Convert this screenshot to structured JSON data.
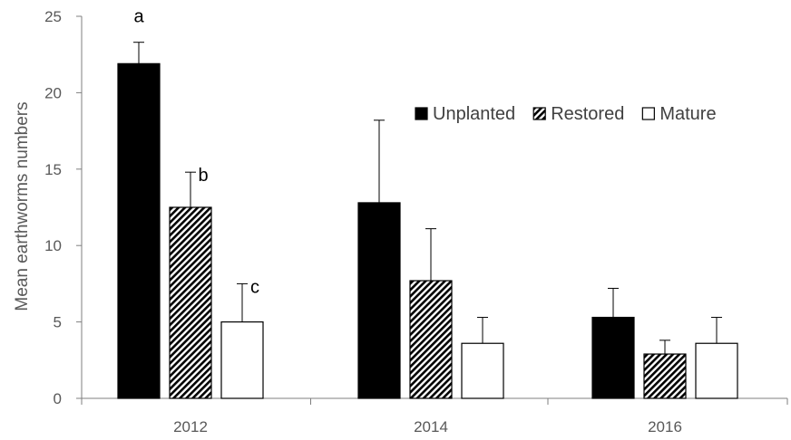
{
  "chart_data": {
    "type": "bar",
    "title": "",
    "xlabel": "",
    "ylabel": "Mean earthworms numbers",
    "categories": [
      "2012",
      "2014",
      "2016"
    ],
    "ylim": [
      0,
      25
    ],
    "yticks": [
      "0",
      "5",
      "10",
      "15",
      "20",
      "25"
    ],
    "grid": false,
    "legend_position": "top-right",
    "series": [
      {
        "name": "Unplanted",
        "values": [
          21.9,
          12.8,
          5.3
        ],
        "errors": [
          1.4,
          5.4,
          1.9
        ],
        "fill": "solid",
        "color": "#000000"
      },
      {
        "name": "Restored",
        "values": [
          12.5,
          7.7,
          2.9
        ],
        "errors": [
          2.3,
          3.4,
          0.9
        ],
        "fill": "hatched",
        "color": "#000000"
      },
      {
        "name": "Mature",
        "values": [
          5.0,
          3.6,
          3.6
        ],
        "errors": [
          2.5,
          1.7,
          1.7
        ],
        "fill": "open",
        "color": "#ffffff"
      }
    ],
    "annotations": [
      {
        "text": "a",
        "category": "2012",
        "series": "Unplanted"
      },
      {
        "text": "b",
        "category": "2012",
        "series": "Restored"
      },
      {
        "text": "c",
        "category": "2012",
        "series": "Mature"
      }
    ]
  }
}
